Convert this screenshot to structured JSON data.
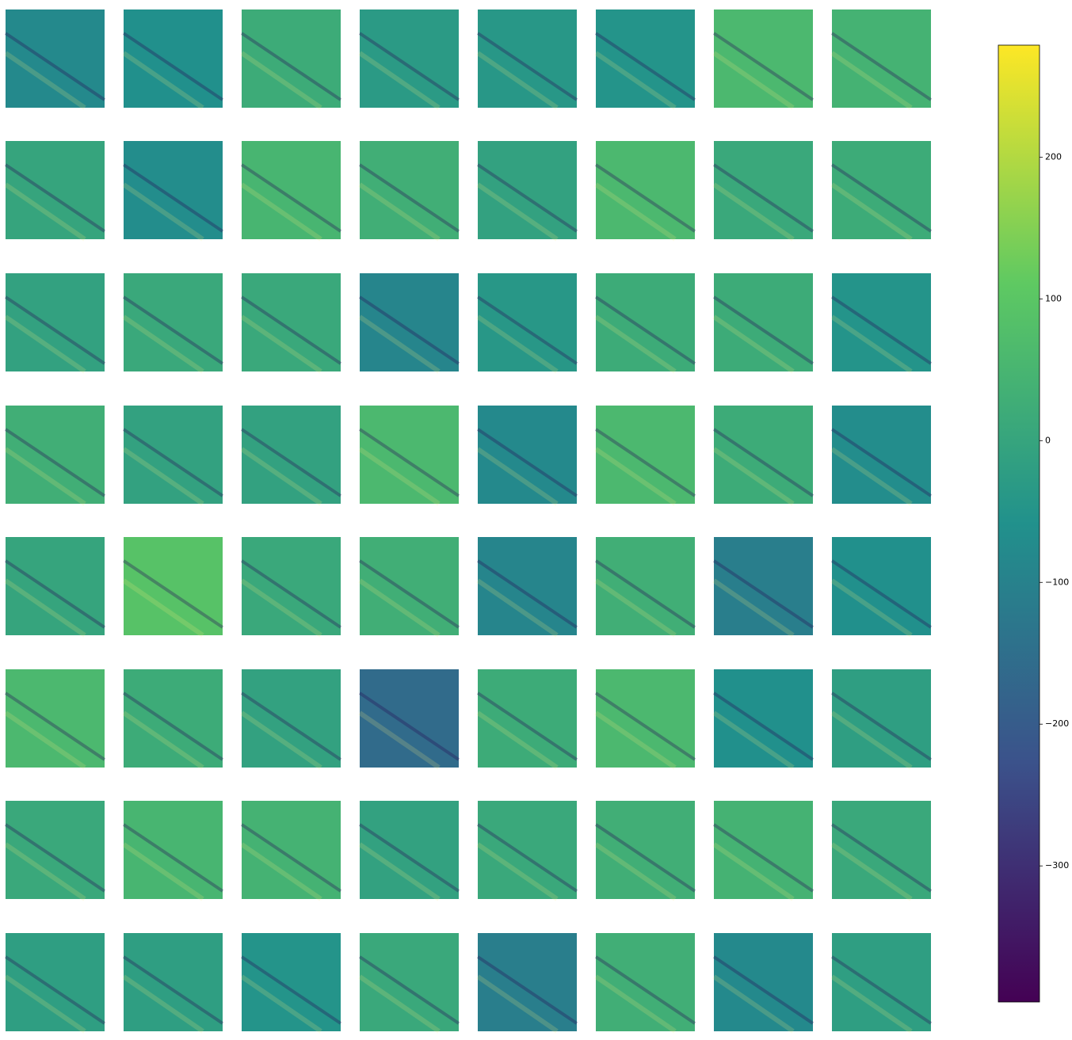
{
  "chart_data": {
    "type": "image_grid",
    "colormap": [
      "#440154",
      "#3b528b",
      "#21918c",
      "#5ec962",
      "#fde725"
    ],
    "images": [
      [
        -80,
        -60,
        20,
        -30,
        -40,
        -50,
        60,
        40
      ],
      [
        0,
        -70,
        50,
        30,
        -10,
        60,
        10,
        20
      ],
      [
        -10,
        10,
        10,
        -90,
        -40,
        20,
        20,
        -50
      ],
      [
        30,
        -10,
        -10,
        60,
        -80,
        60,
        20,
        -70
      ],
      [
        0,
        90,
        10,
        30,
        -90,
        30,
        -110,
        -60
      ],
      [
        60,
        20,
        -10,
        -160,
        20,
        60,
        -60,
        -20
      ],
      [
        10,
        50,
        40,
        -10,
        10,
        30,
        40,
        10
      ],
      [
        -20,
        -20,
        -50,
        10,
        -110,
        30,
        -80,
        -20
      ]
    ],
    "colorbar": {
      "ylim": [
        -396,
        279
      ],
      "yticks": [
        {
          "value": -300,
          "label": "−300"
        },
        {
          "value": -200,
          "label": "−200"
        },
        {
          "value": -100,
          "label": "−100"
        },
        0,
        100,
        200
      ]
    }
  }
}
